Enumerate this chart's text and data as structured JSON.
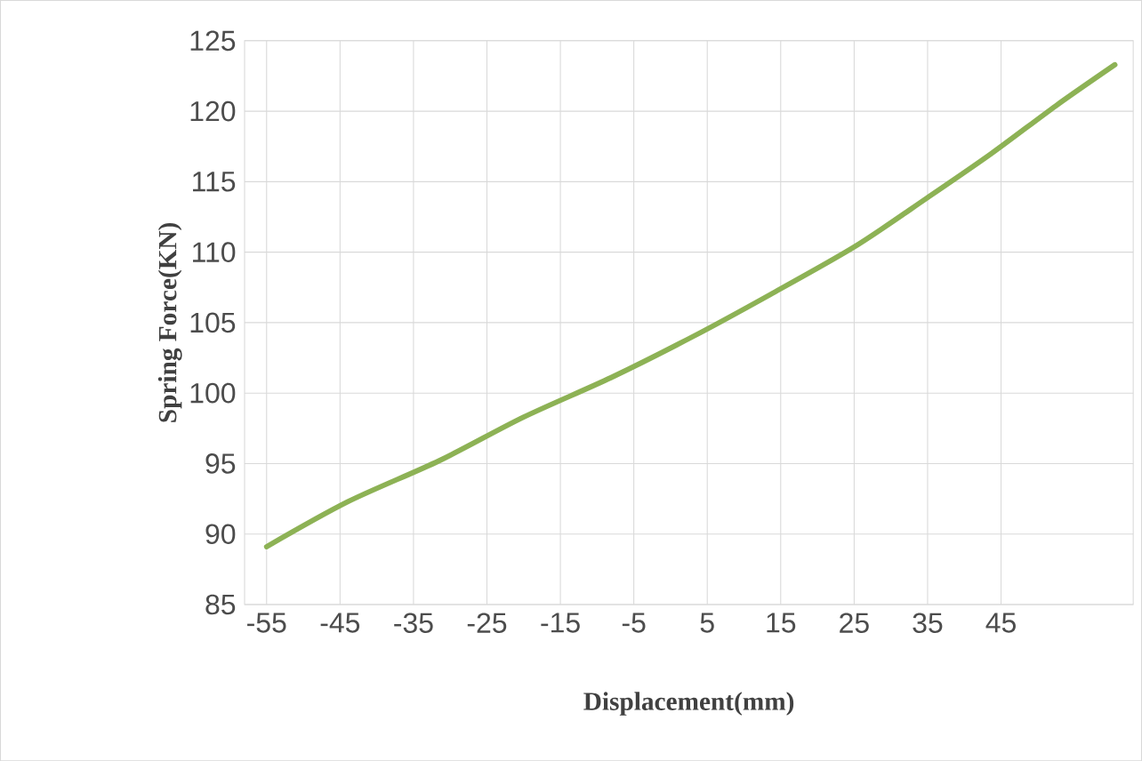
{
  "chart_data": {
    "type": "line",
    "xlabel": "Displacement(mm)",
    "ylabel": "Spring Force(KN)",
    "x": [
      -55,
      -43.9,
      -31.5,
      -20,
      -8.1,
      3,
      13.6,
      25.1,
      34.8,
      43.7,
      52.5,
      60.5
    ],
    "series": [
      {
        "color": "#8db255",
        "values": [
          89.1,
          92.3,
          95.2,
          98.3,
          101.1,
          104.0,
          107.0,
          110.4,
          113.8,
          117.0,
          120.4,
          123.3
        ]
      }
    ],
    "xlim": [
      -58,
      63
    ],
    "xticks": [
      -55,
      -45,
      -35,
      -25,
      -15,
      -5,
      5,
      15,
      25,
      35,
      45
    ],
    "ylim": [
      85,
      125
    ],
    "yticks": [
      85,
      90,
      95,
      100,
      105,
      110,
      115,
      120,
      125
    ],
    "grid": true,
    "marker": "none",
    "line_style": "solid"
  }
}
